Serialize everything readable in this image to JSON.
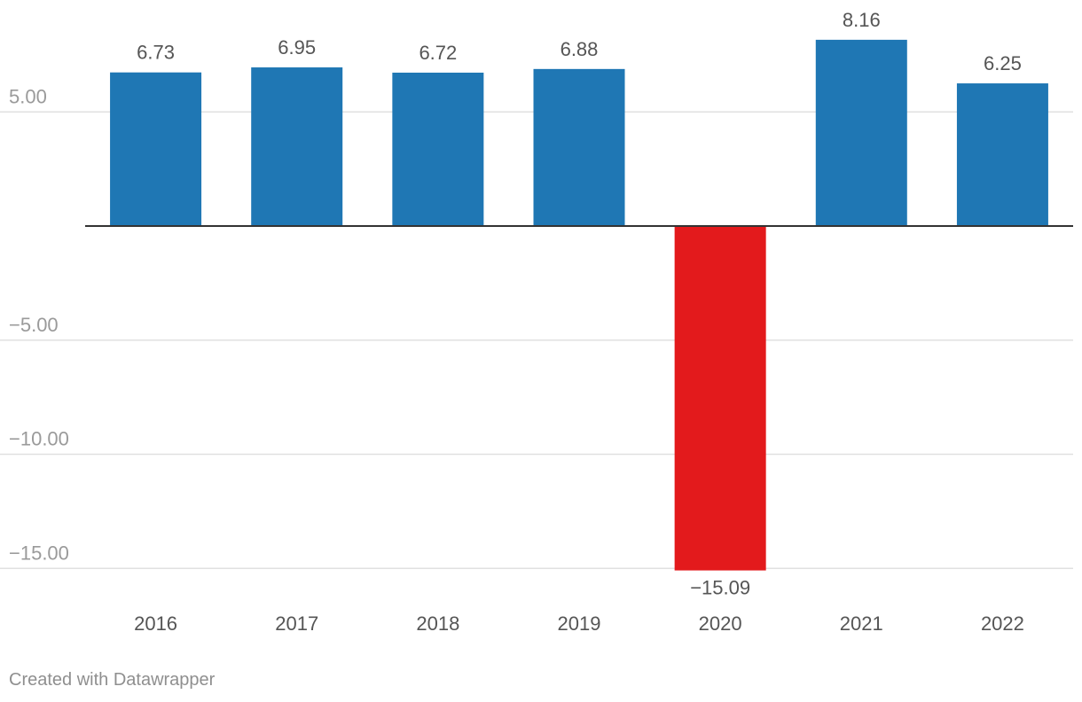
{
  "chart_data": {
    "type": "bar",
    "categories": [
      "2016",
      "2017",
      "2018",
      "2019",
      "2020",
      "2021",
      "2022"
    ],
    "values": [
      6.73,
      6.95,
      6.72,
      6.88,
      -15.09,
      8.16,
      6.25
    ],
    "value_labels": [
      "6.73",
      "6.95",
      "6.72",
      "6.88",
      "−15.09",
      "8.16",
      "6.25"
    ],
    "y_ticks": [
      5,
      -5,
      -10,
      -15
    ],
    "y_tick_labels": [
      "5.00",
      "−5.00",
      "−10.00",
      "−15.00"
    ],
    "ylim": [
      -15.6,
      9.9
    ],
    "title": "",
    "xlabel": "",
    "ylabel": "",
    "grid": true,
    "colors": {
      "positive": "#1f77b4",
      "negative": "#e31a1c",
      "gridline": "#e0e0e0",
      "zero_line": "#333333"
    }
  },
  "footer": {
    "credit": "Created with Datawrapper"
  }
}
